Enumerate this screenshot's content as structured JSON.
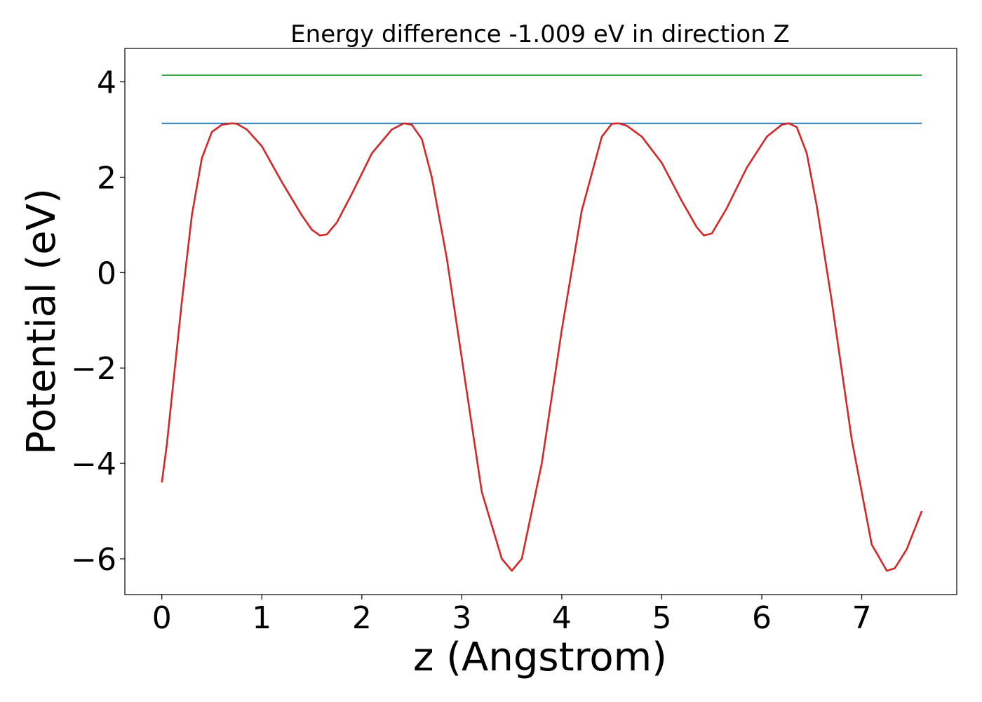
{
  "chart_data": {
    "type": "line",
    "title": "Energy difference -1.009 eV in direction Z",
    "xlabel": "z (Angstrom)",
    "ylabel": "Potential (eV)",
    "xlim": [
      -0.37,
      7.95
    ],
    "ylim": [
      -6.75,
      4.7
    ],
    "xticks": [
      0,
      1,
      2,
      3,
      4,
      5,
      6,
      7
    ],
    "yticks": [
      -6,
      -4,
      -2,
      0,
      2,
      4
    ],
    "ytick_labels": [
      "−6",
      "−4",
      "−2",
      "0",
      "2",
      "4"
    ],
    "grid": false,
    "legend": "none",
    "series": [
      {
        "color": "#2ca02c",
        "x": [
          0,
          7.6
        ],
        "y": [
          4.14,
          4.14
        ]
      },
      {
        "color": "#1f77b4",
        "x": [
          0,
          7.6
        ],
        "y": [
          3.13,
          3.13
        ]
      },
      {
        "color": "#d62728",
        "x": [
          0,
          0.05,
          0.1,
          0.2,
          0.3,
          0.4,
          0.5,
          0.6,
          0.7,
          0.75,
          0.85,
          1.0,
          1.2,
          1.4,
          1.5,
          1.58,
          1.65,
          1.75,
          1.9,
          2.1,
          2.3,
          2.42,
          2.5,
          2.6,
          2.7,
          2.85,
          3.0,
          3.2,
          3.4,
          3.5,
          3.6,
          3.8,
          4.0,
          4.2,
          4.4,
          4.5,
          4.57,
          4.65,
          4.8,
          5.0,
          5.2,
          5.35,
          5.42,
          5.5,
          5.65,
          5.85,
          6.05,
          6.2,
          6.27,
          6.35,
          6.45,
          6.55,
          6.7,
          6.9,
          7.1,
          7.25,
          7.33,
          7.45,
          7.6
        ],
        "y": [
          -4.4,
          -3.6,
          -2.6,
          -0.6,
          1.2,
          2.4,
          2.95,
          3.1,
          3.13,
          3.12,
          3.0,
          2.65,
          1.9,
          1.2,
          0.9,
          0.78,
          0.8,
          1.05,
          1.65,
          2.5,
          3.0,
          3.13,
          3.1,
          2.8,
          2.0,
          0.3,
          -1.8,
          -4.6,
          -6.0,
          -6.25,
          -6.0,
          -4.0,
          -1.2,
          1.3,
          2.85,
          3.12,
          3.13,
          3.08,
          2.85,
          2.3,
          1.5,
          0.95,
          0.78,
          0.82,
          1.35,
          2.2,
          2.85,
          3.1,
          3.13,
          3.05,
          2.5,
          1.4,
          -0.6,
          -3.5,
          -5.7,
          -6.25,
          -6.2,
          -5.8,
          -5.0
        ]
      }
    ]
  }
}
